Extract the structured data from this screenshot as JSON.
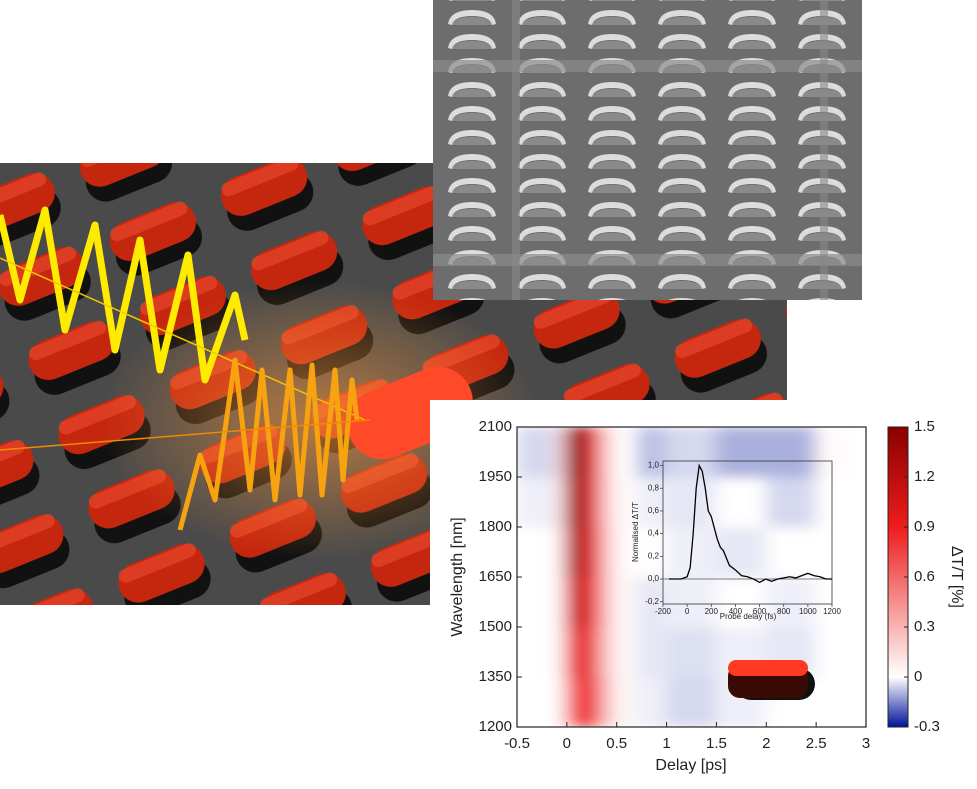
{
  "chart_data": [
    {
      "type": "heatmap",
      "xlabel": "Delay [ps]",
      "ylabel": "Wavelength [nm]",
      "x_bins": [
        -0.5,
        -0.1,
        0,
        0.1,
        0.2,
        0.3,
        0.4,
        0.5,
        0.7,
        1.0,
        1.5,
        2.0,
        2.5,
        2.8
      ],
      "y_bins": [
        1200,
        1350,
        1500,
        1650,
        1800,
        1950,
        2100
      ],
      "values": [
        [
          0,
          0.05,
          0.6,
          0.9,
          0.8,
          0.4,
          0.15,
          0.03,
          -0.02,
          -0.05,
          -0.02,
          0,
          0
        ],
        [
          0,
          0.08,
          0.8,
          1.0,
          0.75,
          0.35,
          0.12,
          0.03,
          -0.03,
          -0.04,
          -0.02,
          -0.03,
          0
        ],
        [
          0,
          0.1,
          1.0,
          1.2,
          0.85,
          0.4,
          0.12,
          0.03,
          -0.03,
          -0.02,
          0,
          -0.02,
          0
        ],
        [
          0,
          0.12,
          1.2,
          1.35,
          0.9,
          0.4,
          0.12,
          0.02,
          0,
          -0.02,
          -0.03,
          0,
          0
        ],
        [
          -0.02,
          0.15,
          1.35,
          1.45,
          0.9,
          0.35,
          0.1,
          0.02,
          -0.02,
          -0.03,
          0,
          -0.05,
          0
        ],
        [
          -0.05,
          0.2,
          1.45,
          1.5,
          0.9,
          0.35,
          0.1,
          0,
          -0.08,
          -0.05,
          -0.1,
          -0.1,
          0.02
        ]
      ],
      "xlim": [
        -0.5,
        3
      ],
      "ylim": [
        1200,
        2100
      ],
      "xticks": [
        -0.5,
        0,
        0.5,
        1,
        1.5,
        2,
        2.5,
        3
      ],
      "yticks": [
        1200,
        1350,
        1500,
        1650,
        1800,
        1950,
        2100
      ],
      "colorbar": {
        "label": "ΔT/T [%]",
        "lim": [
          -0.3,
          1.5
        ],
        "ticks": [
          -0.3,
          0,
          0.3,
          0.6,
          0.9,
          1.2,
          1.5
        ],
        "colorscale": [
          [
            -0.3,
            "#00139a"
          ],
          [
            0,
            "#ffffff"
          ],
          [
            0.9,
            "#ee1c1c"
          ],
          [
            1.5,
            "#8a0000"
          ]
        ]
      }
    },
    {
      "type": "line",
      "xlabel": "Probe delay (fs)",
      "ylabel": "Normalised ΔT/T",
      "x": [
        -150,
        -100,
        -50,
        0,
        25,
        50,
        75,
        100,
        125,
        150,
        175,
        200,
        225,
        250,
        275,
        300,
        350,
        400,
        450,
        500,
        550,
        600,
        650,
        700,
        750,
        800,
        850,
        900,
        950,
        1000,
        1050,
        1100,
        1150,
        1200
      ],
      "series": [
        {
          "color": "#000000",
          "values": [
            0,
            0,
            0,
            0.02,
            0.1,
            0.4,
            0.8,
            1.0,
            0.95,
            0.8,
            0.6,
            0.55,
            0.45,
            0.35,
            0.28,
            0.25,
            0.12,
            0.08,
            0.03,
            0.02,
            0,
            -0.03,
            0,
            -0.02,
            0,
            0.01,
            0.02,
            0.01,
            0.03,
            0.05,
            0.03,
            0.02,
            0,
            0
          ]
        }
      ],
      "xlim": [
        -200,
        1200
      ],
      "ylim": [
        -0.22,
        1.04
      ],
      "xticks": [
        -200,
        0,
        200,
        400,
        600,
        800,
        1000,
        1200
      ],
      "yticks": [
        {
          "value": -0.2,
          "label": "-0,2"
        },
        {
          "value": 0,
          "label": "0,0"
        },
        {
          "value": 0.2,
          "label": "0,2"
        },
        {
          "value": 0.4,
          "label": "0,4"
        },
        {
          "value": 0.6,
          "label": "0,6"
        },
        {
          "value": 0.8,
          "label": "0,8"
        },
        {
          "value": 1.0,
          "label": "1,0"
        }
      ]
    }
  ]
}
